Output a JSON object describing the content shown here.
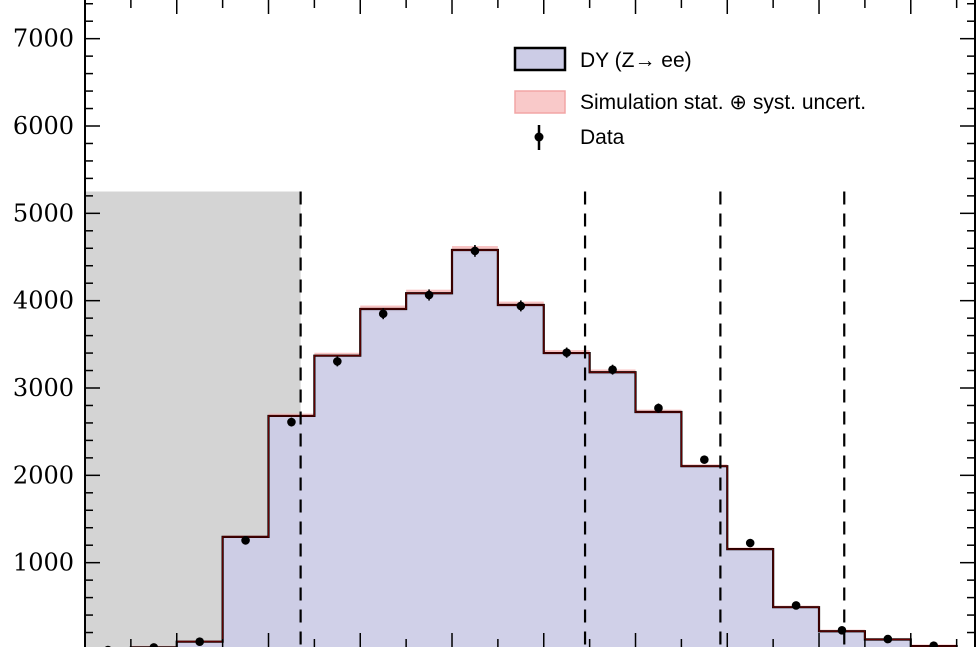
{
  "chart_data": {
    "type": "histogram",
    "title": "",
    "xlabel": "",
    "ylabel": "",
    "ylim": [
      0,
      7500
    ],
    "xlim": [
      0,
      19.4
    ],
    "y_ticks": [
      {
        "value": 1000,
        "label": "1000"
      },
      {
        "value": 2000,
        "label": "2000"
      },
      {
        "value": 3000,
        "label": "3000"
      },
      {
        "value": 4000,
        "label": "4000"
      },
      {
        "value": 5000,
        "label": "5000"
      },
      {
        "value": 6000,
        "label": "6000"
      },
      {
        "value": 7000,
        "label": "7000"
      }
    ],
    "bin_edges": [
      0,
      1,
      2,
      3,
      4,
      5,
      6,
      7,
      8,
      9,
      10,
      11,
      12,
      13,
      14,
      15,
      16,
      17,
      18,
      19,
      20
    ],
    "series": [
      {
        "name": "DY (Z→ ee)",
        "kind": "stacked-histogram",
        "color": "#cccce6",
        "edge_color": "#000000",
        "values": [
          0,
          30,
          95,
          1295,
          2680,
          3370,
          3905,
          4085,
          4580,
          3950,
          3400,
          3180,
          2725,
          2105,
          1155,
          490,
          215,
          120,
          45,
          5
        ]
      },
      {
        "name": "Simulation stat. ⊕ syst. uncert.",
        "kind": "uncertainty-band",
        "color": "#f7b8b8",
        "rel_uncertainty": 0.01
      },
      {
        "name": "Data",
        "kind": "points",
        "color": "#000000",
        "values": [
          0,
          30,
          95,
          1255,
          2610,
          3305,
          3850,
          4065,
          4570,
          3940,
          3405,
          3210,
          2770,
          2180,
          1225,
          510,
          225,
          125,
          50,
          5
        ]
      }
    ],
    "shaded_region": {
      "x_from": 0,
      "x_to": 4.7,
      "y_to": 5250,
      "color": "#d4d4d4"
    },
    "dashed_lines": [
      {
        "x": 4.7,
        "y_from": 0,
        "y_to": 5250
      },
      {
        "x": 10.9,
        "y_from": 0,
        "y_to": 5250
      },
      {
        "x": 13.85,
        "y_from": 0,
        "y_to": 5250
      },
      {
        "x": 16.55,
        "y_from": 0,
        "y_to": 5250
      }
    ],
    "legend": {
      "position": "top-right",
      "entries": [
        {
          "label": "DY (Z→ ee)",
          "type": "box"
        },
        {
          "label": "Simulation stat. ⊕ syst. uncert.",
          "type": "band"
        },
        {
          "label": "Data",
          "type": "marker"
        }
      ]
    }
  }
}
